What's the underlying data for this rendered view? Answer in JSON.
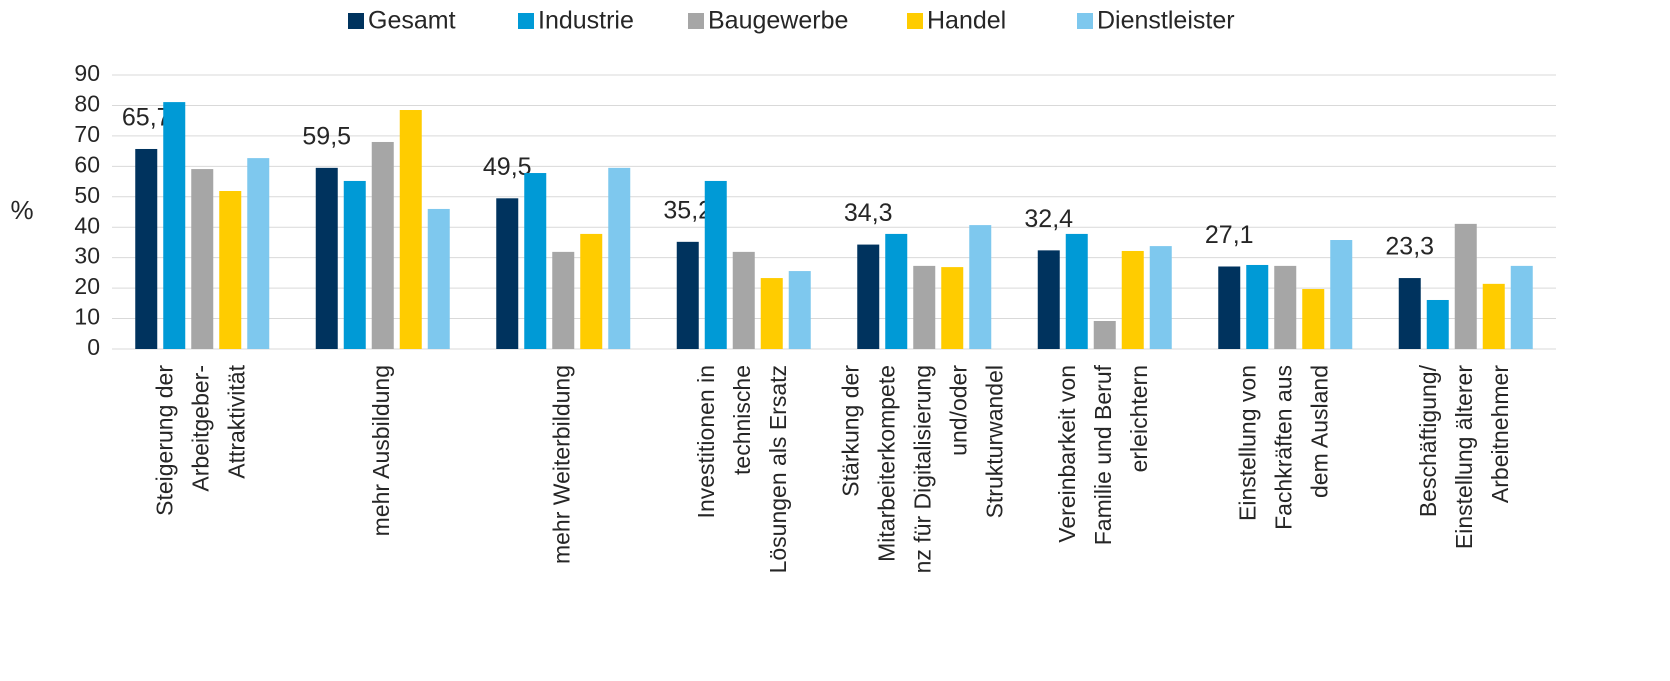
{
  "chart_data": {
    "type": "bar",
    "y_label": "%",
    "categories": [
      [
        "Steigerung der",
        "Arbeitgeber-",
        "Attraktivität"
      ],
      [
        "mehr Ausbildung"
      ],
      [
        "mehr Weiterbildung"
      ],
      [
        "Investitionen in",
        "technische",
        "Lösungen als Ersatz"
      ],
      [
        "Stärkung der",
        "Mitarbeiterkompete",
        "nz für Digitalisierung",
        "und/oder",
        "Strukturwandel"
      ],
      [
        "Vereinbarkeit von",
        "Familie und Beruf",
        "erleichtern"
      ],
      [
        "Einstellung von",
        "Fachkräften aus",
        "dem Ausland"
      ],
      [
        "Beschäftigung/",
        "Einstellung älterer",
        "Arbeitnehmer"
      ]
    ],
    "series": [
      {
        "name": "Gesamt",
        "color": "#00335e",
        "values": [
          65.7,
          59.5,
          49.5,
          35.2,
          34.3,
          32.4,
          27.1,
          23.3
        ],
        "value_labels": [
          "65,7",
          "59,5",
          "49,5",
          "35,2",
          "34,3",
          "32,4",
          "27,1",
          "23,3"
        ]
      },
      {
        "name": "Industrie",
        "color": "#009ad6",
        "values": [
          81.1,
          55.2,
          57.8,
          55.2,
          37.8,
          37.8,
          27.6,
          16.1
        ]
      },
      {
        "name": "Baugewerbe",
        "color": "#a6a6a6",
        "values": [
          59.1,
          68.0,
          31.9,
          31.9,
          27.3,
          9.2,
          27.3,
          41.1
        ]
      },
      {
        "name": "Handel",
        "color": "#ffcc00",
        "values": [
          51.9,
          78.5,
          37.8,
          23.3,
          26.9,
          32.2,
          19.7,
          21.4
        ]
      },
      {
        "name": "Dienstleister",
        "color": "#7ec8ee",
        "values": [
          62.7,
          46.0,
          59.5,
          25.6,
          40.7,
          33.8,
          35.8,
          27.3
        ]
      }
    ],
    "ylim": [
      0,
      90
    ],
    "yticks": [
      0,
      10,
      20,
      30,
      40,
      50,
      60,
      70,
      80,
      90
    ],
    "grid": true
  }
}
